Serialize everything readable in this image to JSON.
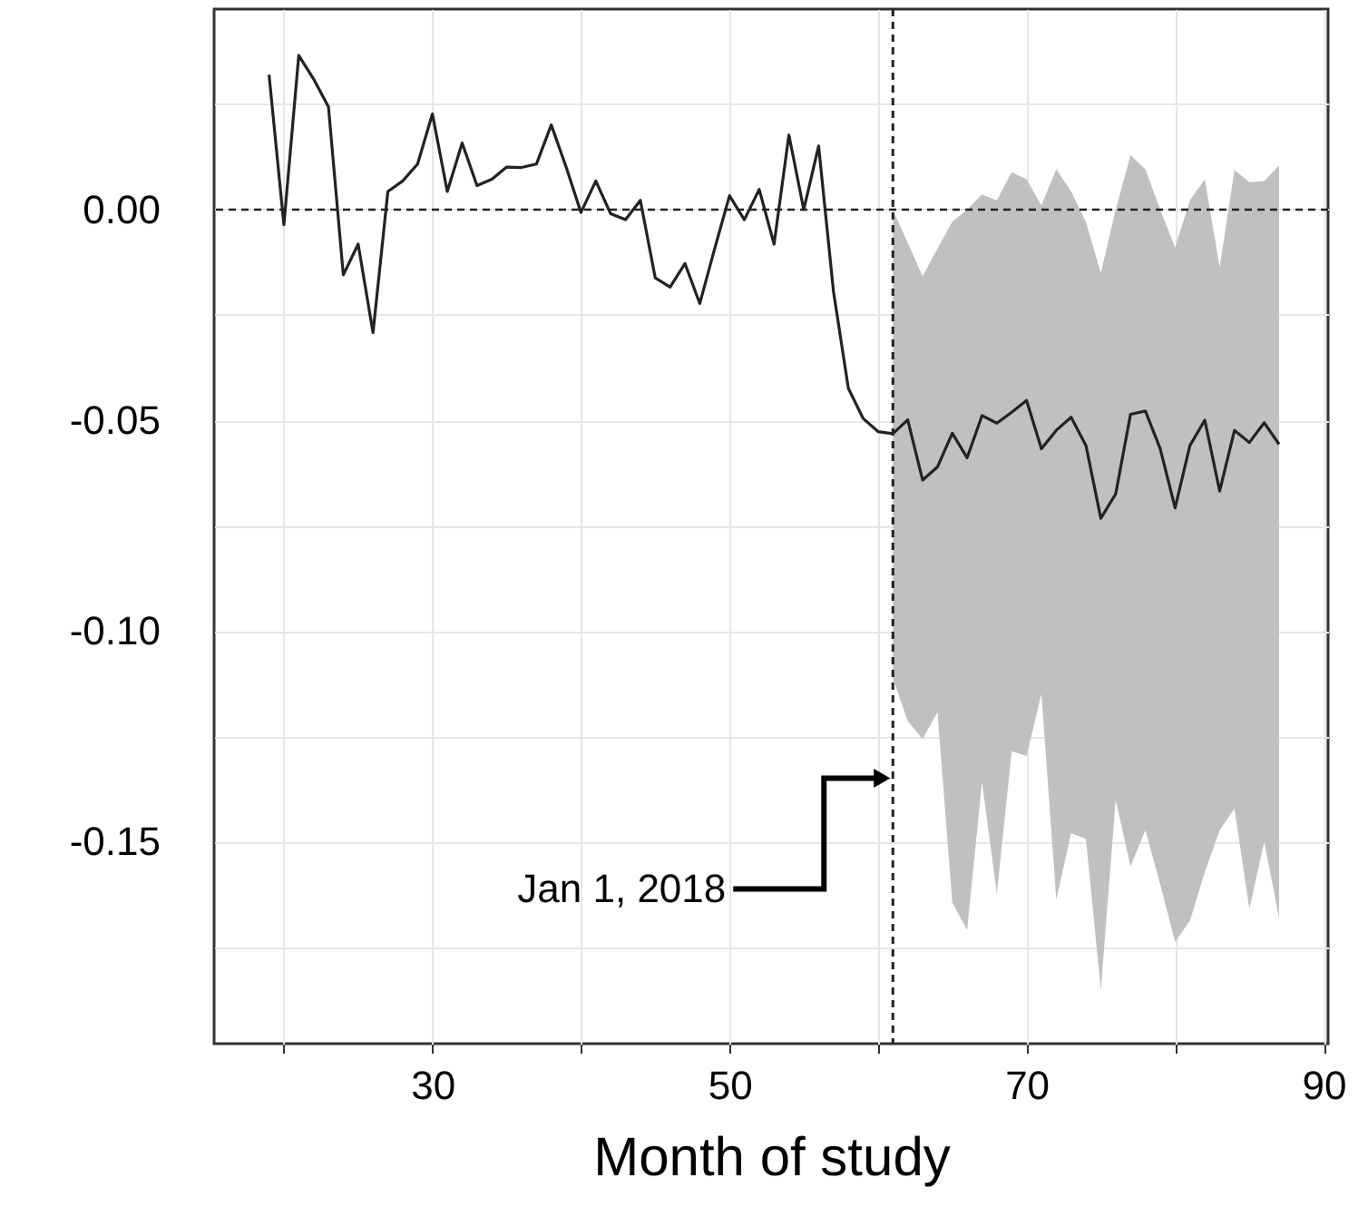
{
  "chart_data": {
    "type": "line",
    "xlabel": "Month of study",
    "x": [
      19,
      20,
      21,
      22,
      23,
      24,
      25,
      26,
      27,
      28,
      29,
      30,
      31,
      32,
      33,
      34,
      35,
      36,
      37,
      38,
      39,
      40,
      41,
      42,
      43,
      44,
      45,
      46,
      47,
      48,
      49,
      50,
      51,
      52,
      53,
      54,
      55,
      56,
      57,
      58,
      59,
      60,
      61,
      62,
      63,
      64,
      65,
      66,
      67,
      68,
      69,
      70,
      71,
      72,
      73,
      74,
      75,
      76,
      77,
      78,
      79,
      80,
      81,
      82,
      83,
      84,
      85,
      86,
      87
    ],
    "series": [
      {
        "color": "#222222",
        "values": [
          0.032,
          -0.0036,
          0.0366,
          0.031,
          0.0244,
          -0.0155,
          -0.0082,
          -0.0292,
          0.0043,
          0.0068,
          0.0108,
          0.0227,
          0.0043,
          0.0158,
          0.0057,
          0.0072,
          0.0101,
          0.01,
          0.0108,
          0.0201,
          0.0101,
          -0.0007,
          0.0068,
          -0.001,
          -0.0024,
          0.0022,
          -0.0162,
          -0.0184,
          -0.0128,
          -0.0223,
          -0.0093,
          0.0033,
          -0.0024,
          0.0048,
          -0.0082,
          0.0177,
          0.0,
          0.0151,
          -0.0194,
          -0.0424,
          -0.0496,
          -0.0527,
          -0.0532,
          -0.0499,
          -0.0642,
          -0.0611,
          -0.0531,
          -0.0589,
          -0.0489,
          -0.0507,
          -0.0481,
          -0.0453,
          -0.0568,
          -0.0524,
          -0.0493,
          -0.056,
          -0.0733,
          -0.0675,
          -0.0486,
          -0.0478,
          -0.0568,
          -0.0708,
          -0.056,
          -0.05,
          -0.0668,
          -0.0524,
          -0.0553,
          -0.0506,
          -0.0557
        ],
        "lower": [
          null,
          null,
          null,
          null,
          null,
          null,
          null,
          null,
          null,
          null,
          null,
          null,
          null,
          null,
          null,
          null,
          null,
          null,
          null,
          null,
          null,
          null,
          null,
          null,
          null,
          null,
          null,
          null,
          null,
          null,
          null,
          null,
          null,
          null,
          null,
          null,
          null,
          null,
          null,
          null,
          null,
          null,
          -0.1113,
          -0.1214,
          -0.1257,
          -0.1193,
          -0.1645,
          -0.171,
          -0.1358,
          -0.1624,
          -0.1286,
          -0.1297,
          -0.115,
          -0.1638,
          -0.148,
          -0.1494,
          -0.1853,
          -0.1401,
          -0.1559,
          -0.1473,
          -0.1602,
          -0.1738,
          -0.1688,
          -0.1573,
          -0.1473,
          -0.1422,
          -0.166,
          -0.1501,
          -0.1681
        ],
        "upper": [
          null,
          null,
          null,
          null,
          null,
          null,
          null,
          null,
          null,
          null,
          null,
          null,
          null,
          null,
          null,
          null,
          null,
          null,
          null,
          null,
          null,
          null,
          null,
          null,
          null,
          null,
          null,
          null,
          null,
          null,
          null,
          null,
          null,
          null,
          null,
          null,
          null,
          null,
          null,
          null,
          null,
          null,
          0.0,
          -0.0079,
          -0.0158,
          -0.0093,
          -0.0029,
          0.0,
          0.0036,
          0.0022,
          0.0089,
          0.0072,
          0.001,
          0.0096,
          0.0043,
          -0.0029,
          -0.0151,
          0.0,
          0.0129,
          0.0096,
          0.0,
          -0.009,
          0.0022,
          0.0072,
          -0.0137,
          0.0094,
          0.0065,
          0.0068,
          0.0105
        ]
      }
    ],
    "xlim": [
      15.3,
      90.3
    ],
    "xticks": [
      {
        "value": 20,
        "label": null
      },
      30,
      {
        "value": 40,
        "label": null
      },
      50,
      {
        "value": 60,
        "label": null
      },
      70,
      {
        "value": 80,
        "label": null
      },
      90
    ],
    "ylim": [
      -0.198,
      0.0476
    ],
    "yticks": [
      {
        "value": -0.175,
        "label": null
      },
      {
        "value": -0.15,
        "label": "-0.15"
      },
      {
        "value": -0.125,
        "label": null
      },
      {
        "value": -0.1,
        "label": "-0.10"
      },
      {
        "value": -0.075,
        "label": null
      },
      {
        "value": -0.05,
        "label": "-0.05"
      },
      {
        "value": -0.025,
        "label": null
      },
      {
        "value": 0,
        "label": "0.00"
      },
      {
        "value": 0.025,
        "label": null
      }
    ],
    "grid": true,
    "line_style": "solid",
    "ref_lines": [
      {
        "axis": "x",
        "value": 61,
        "line_style": "dashed"
      },
      {
        "axis": "y",
        "value": 0,
        "line_style": "dashed"
      }
    ],
    "annotations": [
      {
        "text": "Jan 1, 2018",
        "x": 61,
        "y": -0.135
      }
    ]
  }
}
